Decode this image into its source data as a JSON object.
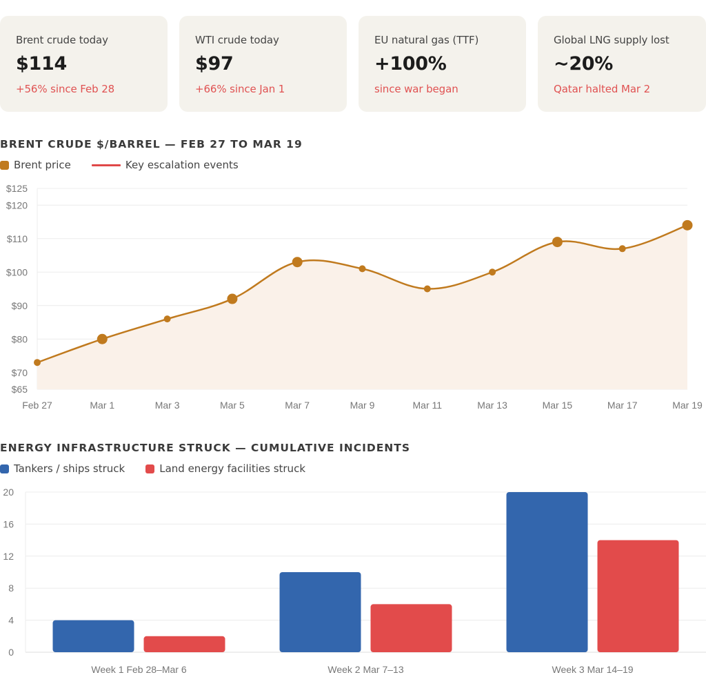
{
  "cards": [
    {
      "label": "Brent crude today",
      "value": "$114",
      "sub": "+56% since Feb 28"
    },
    {
      "label": "WTI crude today",
      "value": "$97",
      "sub": "+66% since Jan 1"
    },
    {
      "label": "EU natural gas (TTF)",
      "value": "+100%",
      "sub": "since war began"
    },
    {
      "label": "Global LNG supply lost",
      "value": "~20%",
      "sub": "Qatar halted Mar 2"
    }
  ],
  "colors": {
    "brent": "#c07a1e",
    "escalation": "#e04848",
    "tankers": "#3366ad",
    "land": "#e24b4b",
    "card_bg": "#f4f2ec",
    "sub_text": "#e05252"
  },
  "chart_data": [
    {
      "type": "line",
      "title": "BRENT CRUDE $/BARREL — FEB 27 TO MAR 19",
      "legend": [
        {
          "label": "Brent price",
          "kind": "swatch"
        },
        {
          "label": "Key escalation events",
          "kind": "line"
        }
      ],
      "legend_position": "top-left",
      "x": [
        "Feb 27",
        "Mar 1",
        "Mar 3",
        "Mar 5",
        "Mar 7",
        "Mar 9",
        "Mar 11",
        "Mar 13",
        "Mar 15",
        "Mar 17",
        "Mar 19"
      ],
      "series": [
        {
          "name": "Brent price",
          "values": [
            73,
            80,
            86,
            92,
            103,
            101,
            95,
            100,
            109,
            107,
            114
          ],
          "escalation_event": [
            false,
            true,
            false,
            true,
            true,
            false,
            false,
            false,
            true,
            false,
            true
          ]
        }
      ],
      "yticks": [
        65,
        70,
        80,
        90,
        100,
        110,
        120,
        125
      ],
      "ytick_labels": [
        "$65",
        "$70",
        "$80",
        "$90",
        "$100",
        "$110",
        "$120",
        "$125"
      ],
      "ylim": [
        65,
        125
      ],
      "xlabel": "",
      "ylabel": "",
      "grid": true,
      "fill_area": true
    },
    {
      "type": "bar",
      "title": "ENERGY INFRASTRUCTURE STRUCK — CUMULATIVE INCIDENTS",
      "legend": [
        {
          "label": "Tankers / ships struck"
        },
        {
          "label": "Land energy facilities struck"
        }
      ],
      "legend_position": "top-left",
      "categories": [
        "Week 1 Feb 28–Mar 6",
        "Week 2 Mar 7–13",
        "Week 3 Mar 14–19"
      ],
      "series": [
        {
          "name": "Tankers / ships struck",
          "values": [
            4,
            10,
            20
          ]
        },
        {
          "name": "Land energy facilities struck",
          "values": [
            2,
            6,
            14
          ]
        }
      ],
      "yticks": [
        0,
        4,
        8,
        12,
        16,
        20
      ],
      "ytick_labels": [
        "0",
        "4",
        "8",
        "12",
        "16",
        "20"
      ],
      "ylim": [
        0,
        20
      ],
      "xlabel": "",
      "ylabel": "",
      "grid": true
    }
  ]
}
